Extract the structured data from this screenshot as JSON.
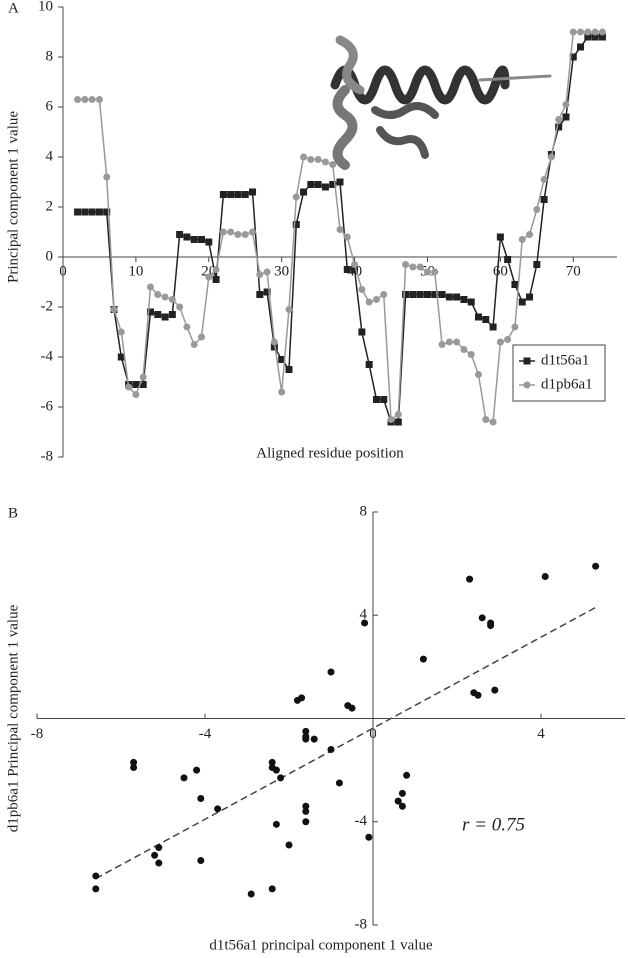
{
  "chart_data": [
    {
      "type": "line",
      "panel_label": "A",
      "x_label": "Aligned residue position",
      "y_label": "Principal component 1 value",
      "x": [
        2,
        3,
        4,
        5,
        6,
        7,
        8,
        9,
        10,
        11,
        12,
        13,
        14,
        15,
        16,
        17,
        18,
        19,
        20,
        21,
        22,
        23,
        24,
        25,
        26,
        27,
        28,
        29,
        30,
        31,
        32,
        33,
        34,
        35,
        36,
        37,
        38,
        39,
        40,
        41,
        42,
        43,
        44,
        45,
        46,
        47,
        48,
        49,
        50,
        51,
        52,
        53,
        54,
        55,
        56,
        57,
        58,
        59,
        60,
        61,
        62,
        63,
        64,
        65,
        66,
        67,
        68,
        69,
        70,
        71,
        72,
        73,
        74
      ],
      "series": [
        {
          "name": "d1t56a1",
          "color": "#222222",
          "marker": "square",
          "values": [
            1.8,
            1.8,
            1.8,
            1.8,
            1.8,
            -2.1,
            -4,
            -5.1,
            -5.1,
            -5.1,
            -2.2,
            -2.3,
            -2.4,
            -2.3,
            0.9,
            0.8,
            0.7,
            0.7,
            0.6,
            -0.9,
            2.5,
            2.5,
            2.5,
            2.5,
            2.6,
            -1.5,
            -1.4,
            -3.6,
            -4.1,
            -4.5,
            1.3,
            2.6,
            2.9,
            2.9,
            2.8,
            2.9,
            3,
            -0.5,
            -0.5,
            -3,
            -4.3,
            -5.7,
            -5.7,
            -6.6,
            -6.6,
            -1.5,
            -1.5,
            -1.5,
            -1.5,
            -1.5,
            -1.5,
            -1.6,
            -1.6,
            -1.7,
            -1.8,
            -2.4,
            -2.5,
            -2.8,
            0.8,
            -0.1,
            -1.1,
            -1.8,
            -1.6,
            -0.3,
            2.3,
            4.1,
            5.2,
            5.6,
            8,
            8.4,
            8.8,
            8.8,
            8.8
          ]
        },
        {
          "name": "d1pb6a1",
          "color": "#999999",
          "marker": "circle",
          "values": [
            6.3,
            6.3,
            6.3,
            6.3,
            3.2,
            -2.1,
            -3,
            -5.2,
            -5.5,
            -4.8,
            -1.2,
            -1.5,
            -1.6,
            -1.7,
            -2,
            -2.8,
            -3.5,
            -3.2,
            -0.8,
            -0.5,
            1,
            1,
            0.9,
            0.9,
            1,
            -0.7,
            -0.6,
            -3.4,
            -5.4,
            -2.1,
            2.4,
            4,
            3.9,
            3.9,
            3.8,
            3.7,
            1.1,
            0.8,
            -0.3,
            -1.3,
            -1.8,
            -1.7,
            -1.5,
            -6.5,
            -6.3,
            -0.3,
            -0.4,
            -0.4,
            -0.6,
            -0.6,
            -3.5,
            -3.4,
            -3.4,
            -3.7,
            -3.9,
            -4.7,
            -6.5,
            -6.6,
            -3.4,
            -3.3,
            -2.8,
            0.7,
            0.9,
            1.9,
            3.1,
            4,
            5.5,
            6.1,
            9,
            9,
            9,
            9,
            9
          ]
        }
      ],
      "xlim": [
        0,
        76
      ],
      "xticks": [
        0,
        10,
        20,
        30,
        40,
        50,
        60,
        70
      ],
      "ylim": [
        -8,
        10
      ],
      "yticks": [
        -8,
        -6,
        -4,
        -2,
        0,
        2,
        4,
        6,
        8,
        10
      ],
      "grid": false,
      "legend": "lower right"
    },
    {
      "type": "scatter",
      "panel_label": "B",
      "x_label": "d1t56a1 principal component 1 value",
      "y_label": "d1pb6a1 Principal component 1 value",
      "annotation": "r = 0.75",
      "color": "#111111",
      "x": [
        5.3,
        4.1,
        2.3,
        2.6,
        2.8,
        2.8,
        -0.2,
        1.2,
        -1,
        -1.7,
        -1.8,
        -0.6,
        -0.5,
        2.4,
        2.5,
        2.9,
        -5.7,
        -5.7,
        -4.5,
        -4.2,
        -4.1,
        -3.7,
        -2.4,
        -2.4,
        -2.3,
        -2.2,
        -1.6,
        -1.6,
        -1.6,
        -1.4,
        -1,
        -0.8,
        -1.6,
        -1.6,
        -1.6,
        -2.3,
        -2,
        -0.1,
        0.8,
        0.6,
        0.7,
        0.7,
        -5.1,
        -5.2,
        -5.1,
        -4.1,
        -6.6,
        -6.6,
        -2.9,
        -2.4
      ],
      "y": [
        5.9,
        5.5,
        5.4,
        3.9,
        3.7,
        3.6,
        3.7,
        2.3,
        1.8,
        0.8,
        0.7,
        0.5,
        0.4,
        1,
        0.9,
        1.1,
        -1.7,
        -1.9,
        -2.3,
        -2,
        -3.1,
        -3.5,
        -1.7,
        -1.9,
        -2,
        -2.3,
        -0.5,
        -0.7,
        -0.8,
        -0.8,
        -1.2,
        -2.5,
        -3.4,
        -3.6,
        -4,
        -4.1,
        -4.9,
        -4.6,
        -2.2,
        -3.2,
        -3.4,
        -2.9,
        -5,
        -5.3,
        -5.6,
        -5.5,
        -6.1,
        -6.6,
        -6.8,
        -6.6
      ],
      "trendline": {
        "x": [
          -6.6,
          5.3
        ],
        "y": [
          -6.2,
          4.3
        ]
      },
      "xlim": [
        -8,
        6
      ],
      "xticks": [
        -8,
        -4,
        0,
        4
      ],
      "ylim": [
        -8,
        8
      ],
      "yticks": [
        -8,
        -4,
        4,
        8
      ],
      "grid": false
    }
  ]
}
